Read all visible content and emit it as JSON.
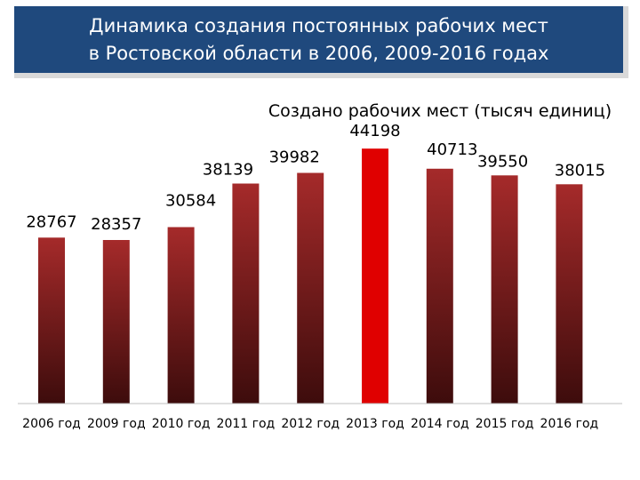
{
  "header": {
    "title": "Динамика создания постоянных рабочих мест\nв Ростовской области в 2006, 2009-2016 годах"
  },
  "colors": {
    "header_bg": "#1f497d",
    "bar_top": "#a52a2a",
    "bar_bottom": "#3d0c0c",
    "highlight_bar": "#e00000",
    "axis": "#bfbfbf"
  },
  "chart_data": {
    "type": "bar",
    "title": "Создано рабочих мест (тысяч единиц)",
    "categories": [
      "2006 год",
      "2009 год",
      "2010 год",
      "2011 год",
      "2012 год",
      "2013 год",
      "2014 год",
      "2015 год",
      "2016 год"
    ],
    "values": [
      28767,
      28357,
      30584,
      38139,
      39982,
      44198,
      40713,
      39550,
      38015
    ],
    "data_labels": [
      "28767",
      "28357",
      "30584",
      "38139",
      "39982",
      "44198",
      "40713",
      "39550",
      "38015"
    ],
    "highlight_category": "2013 год",
    "ylim": [
      0,
      47000
    ],
    "grid": false,
    "legend": "none"
  }
}
